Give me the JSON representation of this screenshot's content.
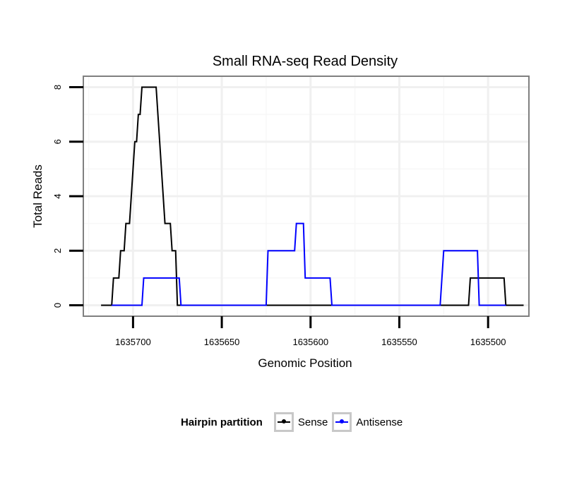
{
  "chart_data": {
    "type": "line",
    "title": "Small RNA-seq Read Density",
    "xlabel": "Genomic Position",
    "ylabel": "Total Reads",
    "x_reversed": true,
    "xlim": [
      1635477,
      1635728
    ],
    "ylim": [
      -0.4,
      8.4
    ],
    "x_ticks": [
      1635700,
      1635650,
      1635600,
      1635550,
      1635500
    ],
    "y_ticks": [
      0,
      2,
      4,
      6,
      8
    ],
    "x_tick_labels": [
      "1635700",
      "1635650",
      "1635600",
      "1635550",
      "1635500"
    ],
    "y_tick_labels": [
      "0",
      "2",
      "4",
      "6",
      "8"
    ],
    "grid": true,
    "legend_position": "bottom",
    "series": [
      {
        "name": "Sense",
        "color": "#000000",
        "points": [
          [
            1635718,
            0
          ],
          [
            1635712,
            0
          ],
          [
            1635711,
            1
          ],
          [
            1635708,
            1
          ],
          [
            1635707,
            2
          ],
          [
            1635705,
            2
          ],
          [
            1635704,
            3
          ],
          [
            1635702,
            3
          ],
          [
            1635701,
            4
          ],
          [
            1635700,
            5
          ],
          [
            1635699,
            6
          ],
          [
            1635698,
            6
          ],
          [
            1635697,
            7
          ],
          [
            1635696,
            7
          ],
          [
            1635695,
            8
          ],
          [
            1635687,
            8
          ],
          [
            1635686,
            7
          ],
          [
            1635685,
            6
          ],
          [
            1635684,
            5
          ],
          [
            1635683,
            4
          ],
          [
            1635682,
            3
          ],
          [
            1635679,
            3
          ],
          [
            1635678,
            2
          ],
          [
            1635676,
            2
          ],
          [
            1635675,
            0
          ],
          [
            1635511,
            0
          ],
          [
            1635510,
            1
          ],
          [
            1635491,
            1
          ],
          [
            1635490,
            0
          ],
          [
            1635480,
            0
          ]
        ]
      },
      {
        "name": "Antisense",
        "color": "#0000ff",
        "points": [
          [
            1635712,
            0
          ],
          [
            1635695,
            0
          ],
          [
            1635694,
            1
          ],
          [
            1635674,
            1
          ],
          [
            1635673,
            0
          ],
          [
            1635625,
            0
          ],
          [
            1635624,
            2
          ],
          [
            1635609,
            2
          ],
          [
            1635608,
            3
          ],
          [
            1635604,
            3
          ],
          [
            1635603,
            1
          ],
          [
            1635589,
            1
          ],
          [
            1635588,
            0
          ],
          [
            1635527,
            0
          ],
          [
            1635526,
            1
          ],
          [
            1635525,
            2
          ],
          [
            1635506,
            2
          ],
          [
            1635505,
            0
          ],
          [
            1635490,
            0
          ]
        ]
      }
    ]
  },
  "legend": {
    "title": "Hairpin partition",
    "items": [
      {
        "label": "Sense",
        "color": "#000000"
      },
      {
        "label": "Antisense",
        "color": "#0000ff"
      }
    ]
  }
}
